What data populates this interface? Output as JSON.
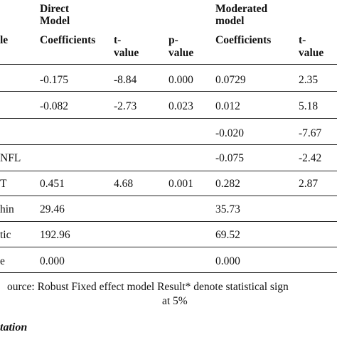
{
  "header": {
    "variable_fragment": "le",
    "direct_model": [
      "Direct",
      "Model"
    ],
    "moderated_model": [
      "Moderated",
      "model"
    ],
    "coefficients": "Coefficients",
    "t_value": [
      "t-",
      "value"
    ],
    "p_value": [
      "p-",
      "value"
    ]
  },
  "rows": [
    {
      "label": "",
      "d_coef": "-0.175",
      "d_t": "-8.84",
      "d_p": "0.000",
      "m_coef": "0.0729",
      "m_t": "2.35"
    },
    {
      "label": "",
      "d_coef": "-0.082",
      "d_t": "-2.73",
      "d_p": "0.023",
      "m_coef": "0.012",
      "m_t": "5.18"
    },
    {
      "label": "",
      "d_coef": "",
      "d_t": "",
      "d_p": "",
      "m_coef": "-0.020",
      "m_t": "-7.67"
    },
    {
      "label": "NFL",
      "d_coef": "",
      "d_t": "",
      "d_p": "",
      "m_coef": "-0.075",
      "m_t": "-2.42"
    },
    {
      "label": "T",
      "d_coef": "0.451",
      "d_t": "4.68",
      "d_p": "0.001",
      "m_coef": "0.282",
      "m_t": "2.87"
    },
    {
      "label": "hin",
      "d_coef": "29.46",
      "d_t": "",
      "d_p": "",
      "m_coef": "35.73",
      "m_t": ""
    },
    {
      "label": "tic",
      "d_coef": "192.96",
      "d_t": "",
      "d_p": "",
      "m_coef": "69.52",
      "m_t": ""
    },
    {
      "label": "e",
      "d_coef": "0.000",
      "d_t": "",
      "d_p": "",
      "m_coef": "0.000",
      "m_t": ""
    }
  ],
  "footnote": {
    "line1": "ource: Robust Fixed effect model Result* denote statistical sign",
    "line2": "at 5%"
  },
  "section_heading": "tation"
}
